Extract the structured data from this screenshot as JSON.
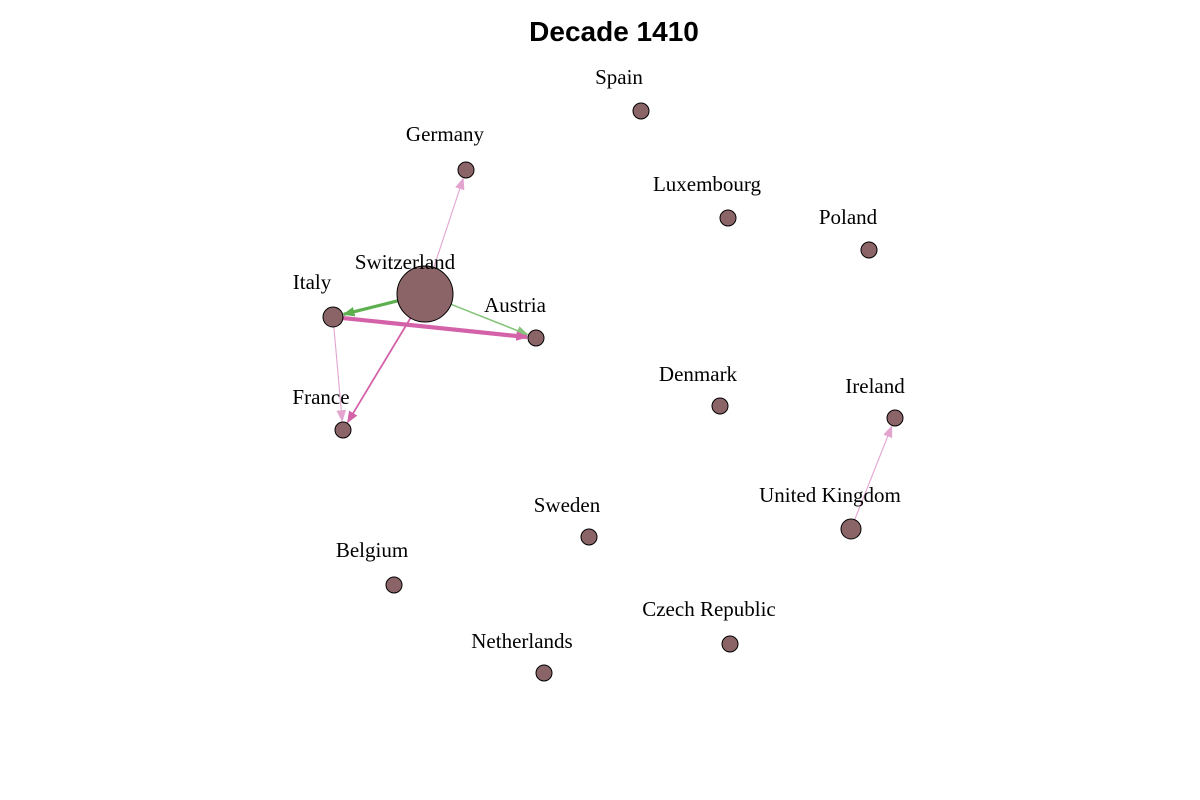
{
  "title": "Decade 1410",
  "colors": {
    "node_fill": "#8b6468",
    "edge_pink": "#d462a8",
    "edge_pink_light": "#e3a5cf",
    "edge_green": "#5cb04e",
    "edge_green_light": "#85c47a"
  },
  "nodes": [
    {
      "id": "spain",
      "label": "Spain"
    },
    {
      "id": "germany",
      "label": "Germany"
    },
    {
      "id": "luxembourg",
      "label": "Luxembourg"
    },
    {
      "id": "poland",
      "label": "Poland"
    },
    {
      "id": "switzerland",
      "label": "Switzerland"
    },
    {
      "id": "italy",
      "label": "Italy"
    },
    {
      "id": "austria",
      "label": "Austria"
    },
    {
      "id": "france",
      "label": "France"
    },
    {
      "id": "denmark",
      "label": "Denmark"
    },
    {
      "id": "ireland",
      "label": "Ireland"
    },
    {
      "id": "united-kingdom",
      "label": "United Kingdom"
    },
    {
      "id": "sweden",
      "label": "Sweden"
    },
    {
      "id": "belgium",
      "label": "Belgium"
    },
    {
      "id": "czech-republic",
      "label": "Czech Republic"
    },
    {
      "id": "netherlands",
      "label": "Netherlands"
    }
  ],
  "edges": [
    {
      "from": "switzerland",
      "to": "germany",
      "color": "edge_pink_light"
    },
    {
      "from": "switzerland",
      "to": "italy",
      "color": "edge_green"
    },
    {
      "from": "switzerland",
      "to": "austria",
      "color": "edge_green_light"
    },
    {
      "from": "italy",
      "to": "austria",
      "color": "edge_pink"
    },
    {
      "from": "switzerland",
      "to": "france",
      "color": "edge_pink"
    },
    {
      "from": "italy",
      "to": "france",
      "color": "edge_pink_light"
    },
    {
      "from": "united-kingdom",
      "to": "ireland",
      "color": "edge_pink_light"
    }
  ]
}
